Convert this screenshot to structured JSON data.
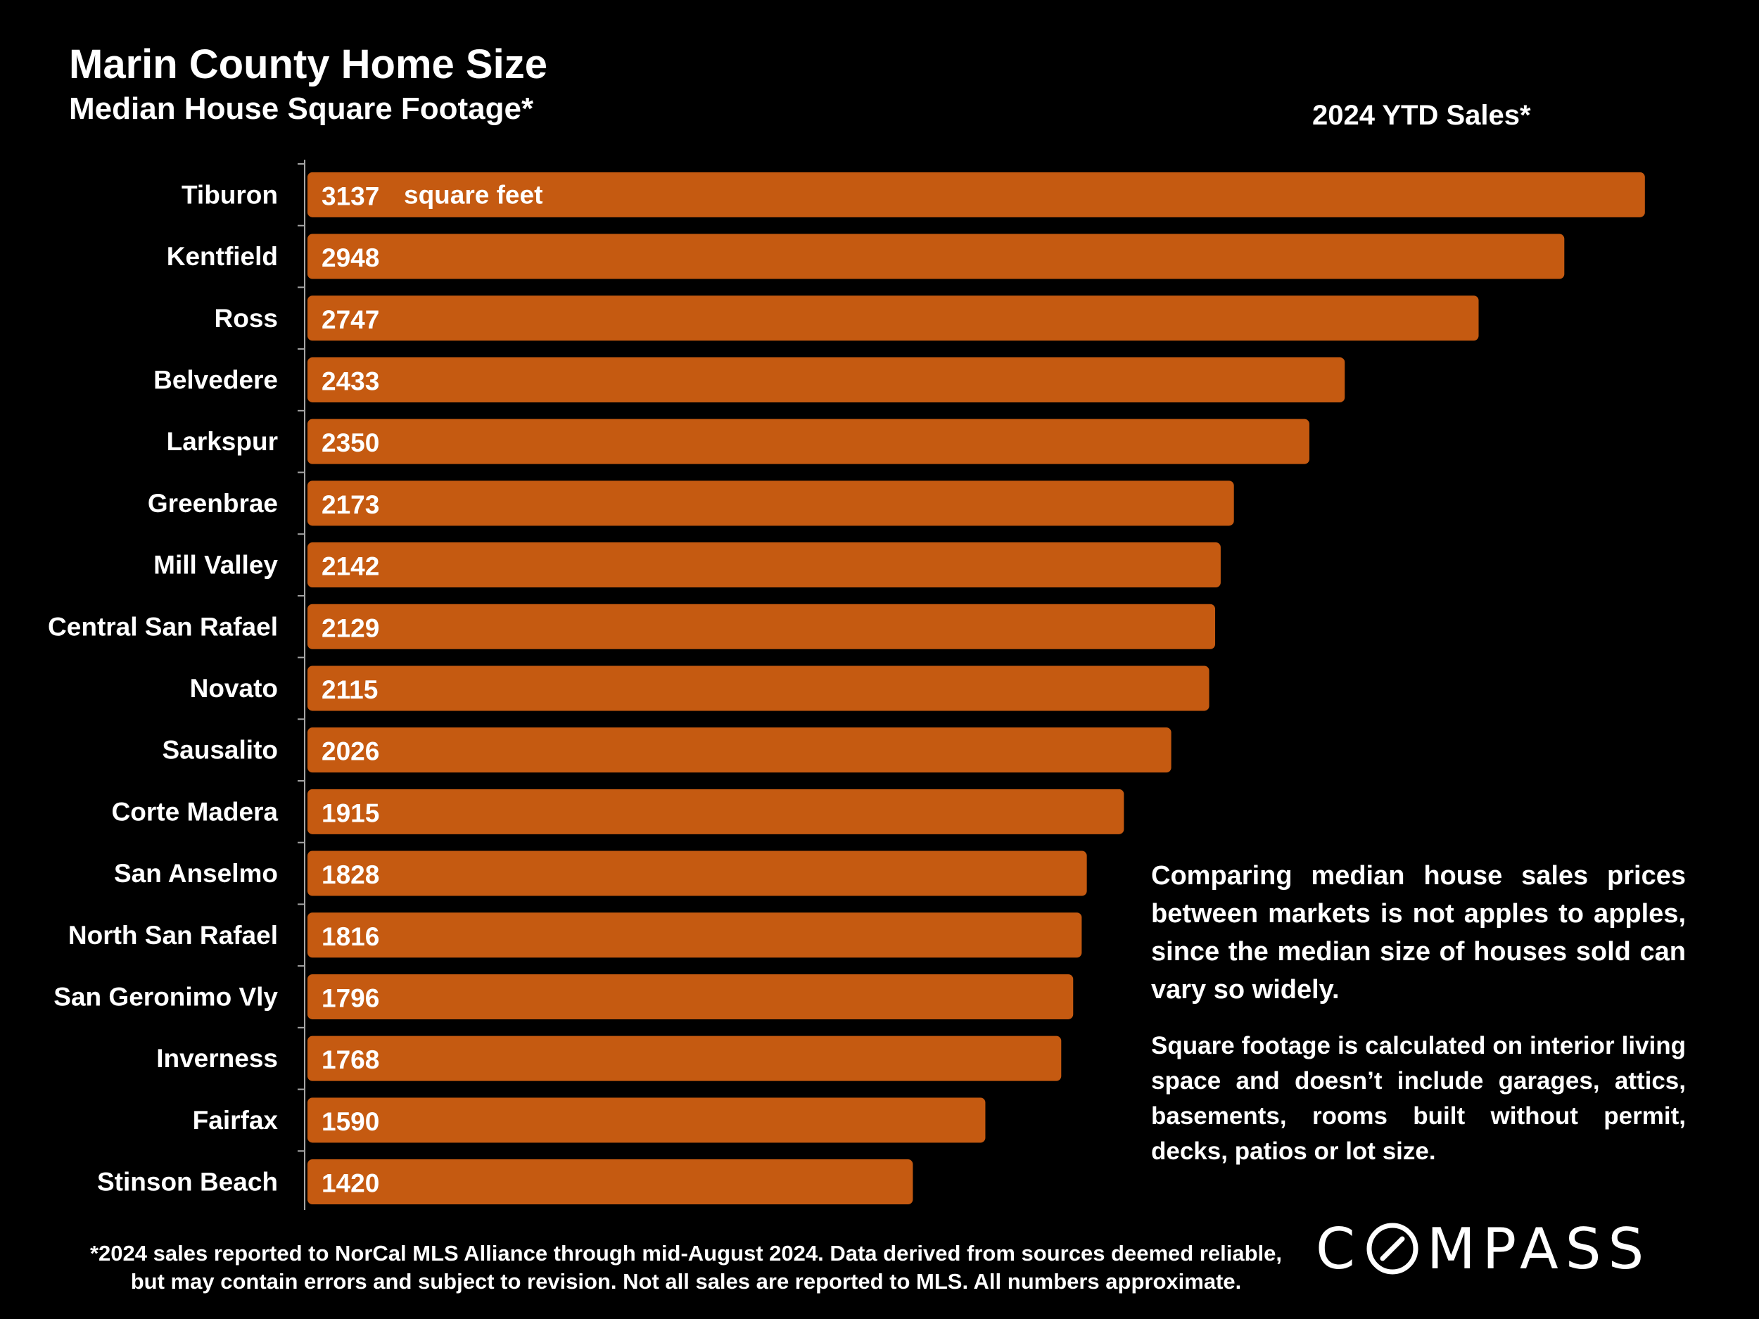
{
  "header": {
    "title": "Marin County Home Size",
    "subtitle": "Median House Square Footage*",
    "period": "2024 YTD Sales*"
  },
  "chart_data": {
    "type": "bar",
    "orientation": "horizontal",
    "categories": [
      "Tiburon",
      "Kentfield",
      "Ross",
      "Belvedere",
      "Larkspur",
      "Greenbrae",
      "Mill Valley",
      "Central San Rafael",
      "Novato",
      "Sausalito",
      "Corte Madera",
      "San Anselmo",
      "North San Rafael",
      "San Geronimo Vly",
      "Inverness",
      "Fairfax",
      "Stinson Beach"
    ],
    "values": [
      3137,
      2948,
      2747,
      2433,
      2350,
      2173,
      2142,
      2129,
      2115,
      2026,
      1915,
      1828,
      1816,
      1796,
      1768,
      1590,
      1420
    ],
    "unit_label": "square feet",
    "xlim": [
      0,
      3200
    ],
    "bar_color": "#C55A11",
    "grid": false,
    "title": "Marin County Home Size",
    "subtitle": "Median House Square Footage*"
  },
  "notes": {
    "comparison": "Comparing median house sales prices between markets is not apples to apples, since the median size of houses sold can vary so widely.",
    "definition": "Square footage is calculated on interior living space and doesn’t include garages, attics, basements, rooms built without permit, decks, patios or lot size."
  },
  "footnote": {
    "line1": "*2024 sales reported to NorCal MLS Alliance through mid-August 2024. Data derived from sources deemed reliable,",
    "line2": "but may contain errors and subject to revision. Not all sales are reported to MLS. All numbers approximate."
  },
  "logo": {
    "letter_c": "C",
    "rest": "MPASS",
    "icon": "compass-o-icon"
  }
}
